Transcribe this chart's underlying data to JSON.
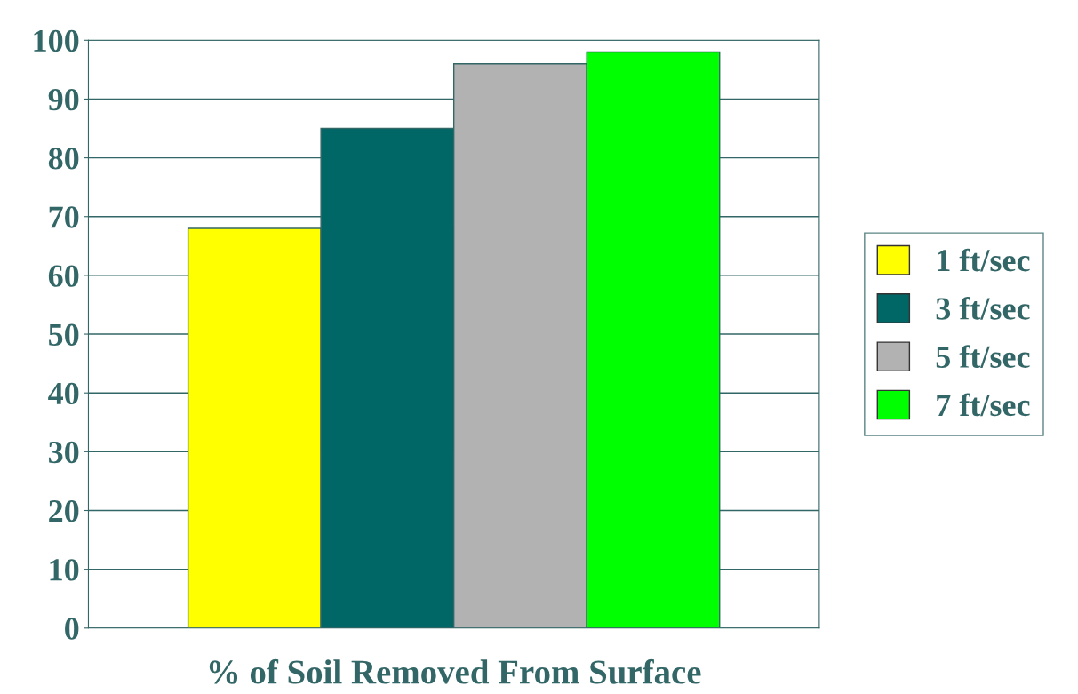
{
  "chart_data": {
    "type": "bar",
    "xlabel": "% of Soil Removed From Surface",
    "categories": [
      null
    ],
    "series": [
      {
        "name": "1 ft/sec",
        "color": "#ffff00",
        "values": [
          68
        ]
      },
      {
        "name": "3 ft/sec",
        "color": "#006666",
        "values": [
          85
        ]
      },
      {
        "name": "5 ft/sec",
        "color": "#b2b2b2",
        "values": [
          96
        ]
      },
      {
        "name": "7 ft/sec",
        "color": "#00ff00",
        "values": [
          98
        ]
      }
    ],
    "ylim": [
      0,
      100
    ],
    "yticks": [
      0,
      10,
      20,
      30,
      40,
      50,
      60,
      70,
      80,
      90,
      100
    ],
    "grid": "y",
    "legend": "right"
  }
}
